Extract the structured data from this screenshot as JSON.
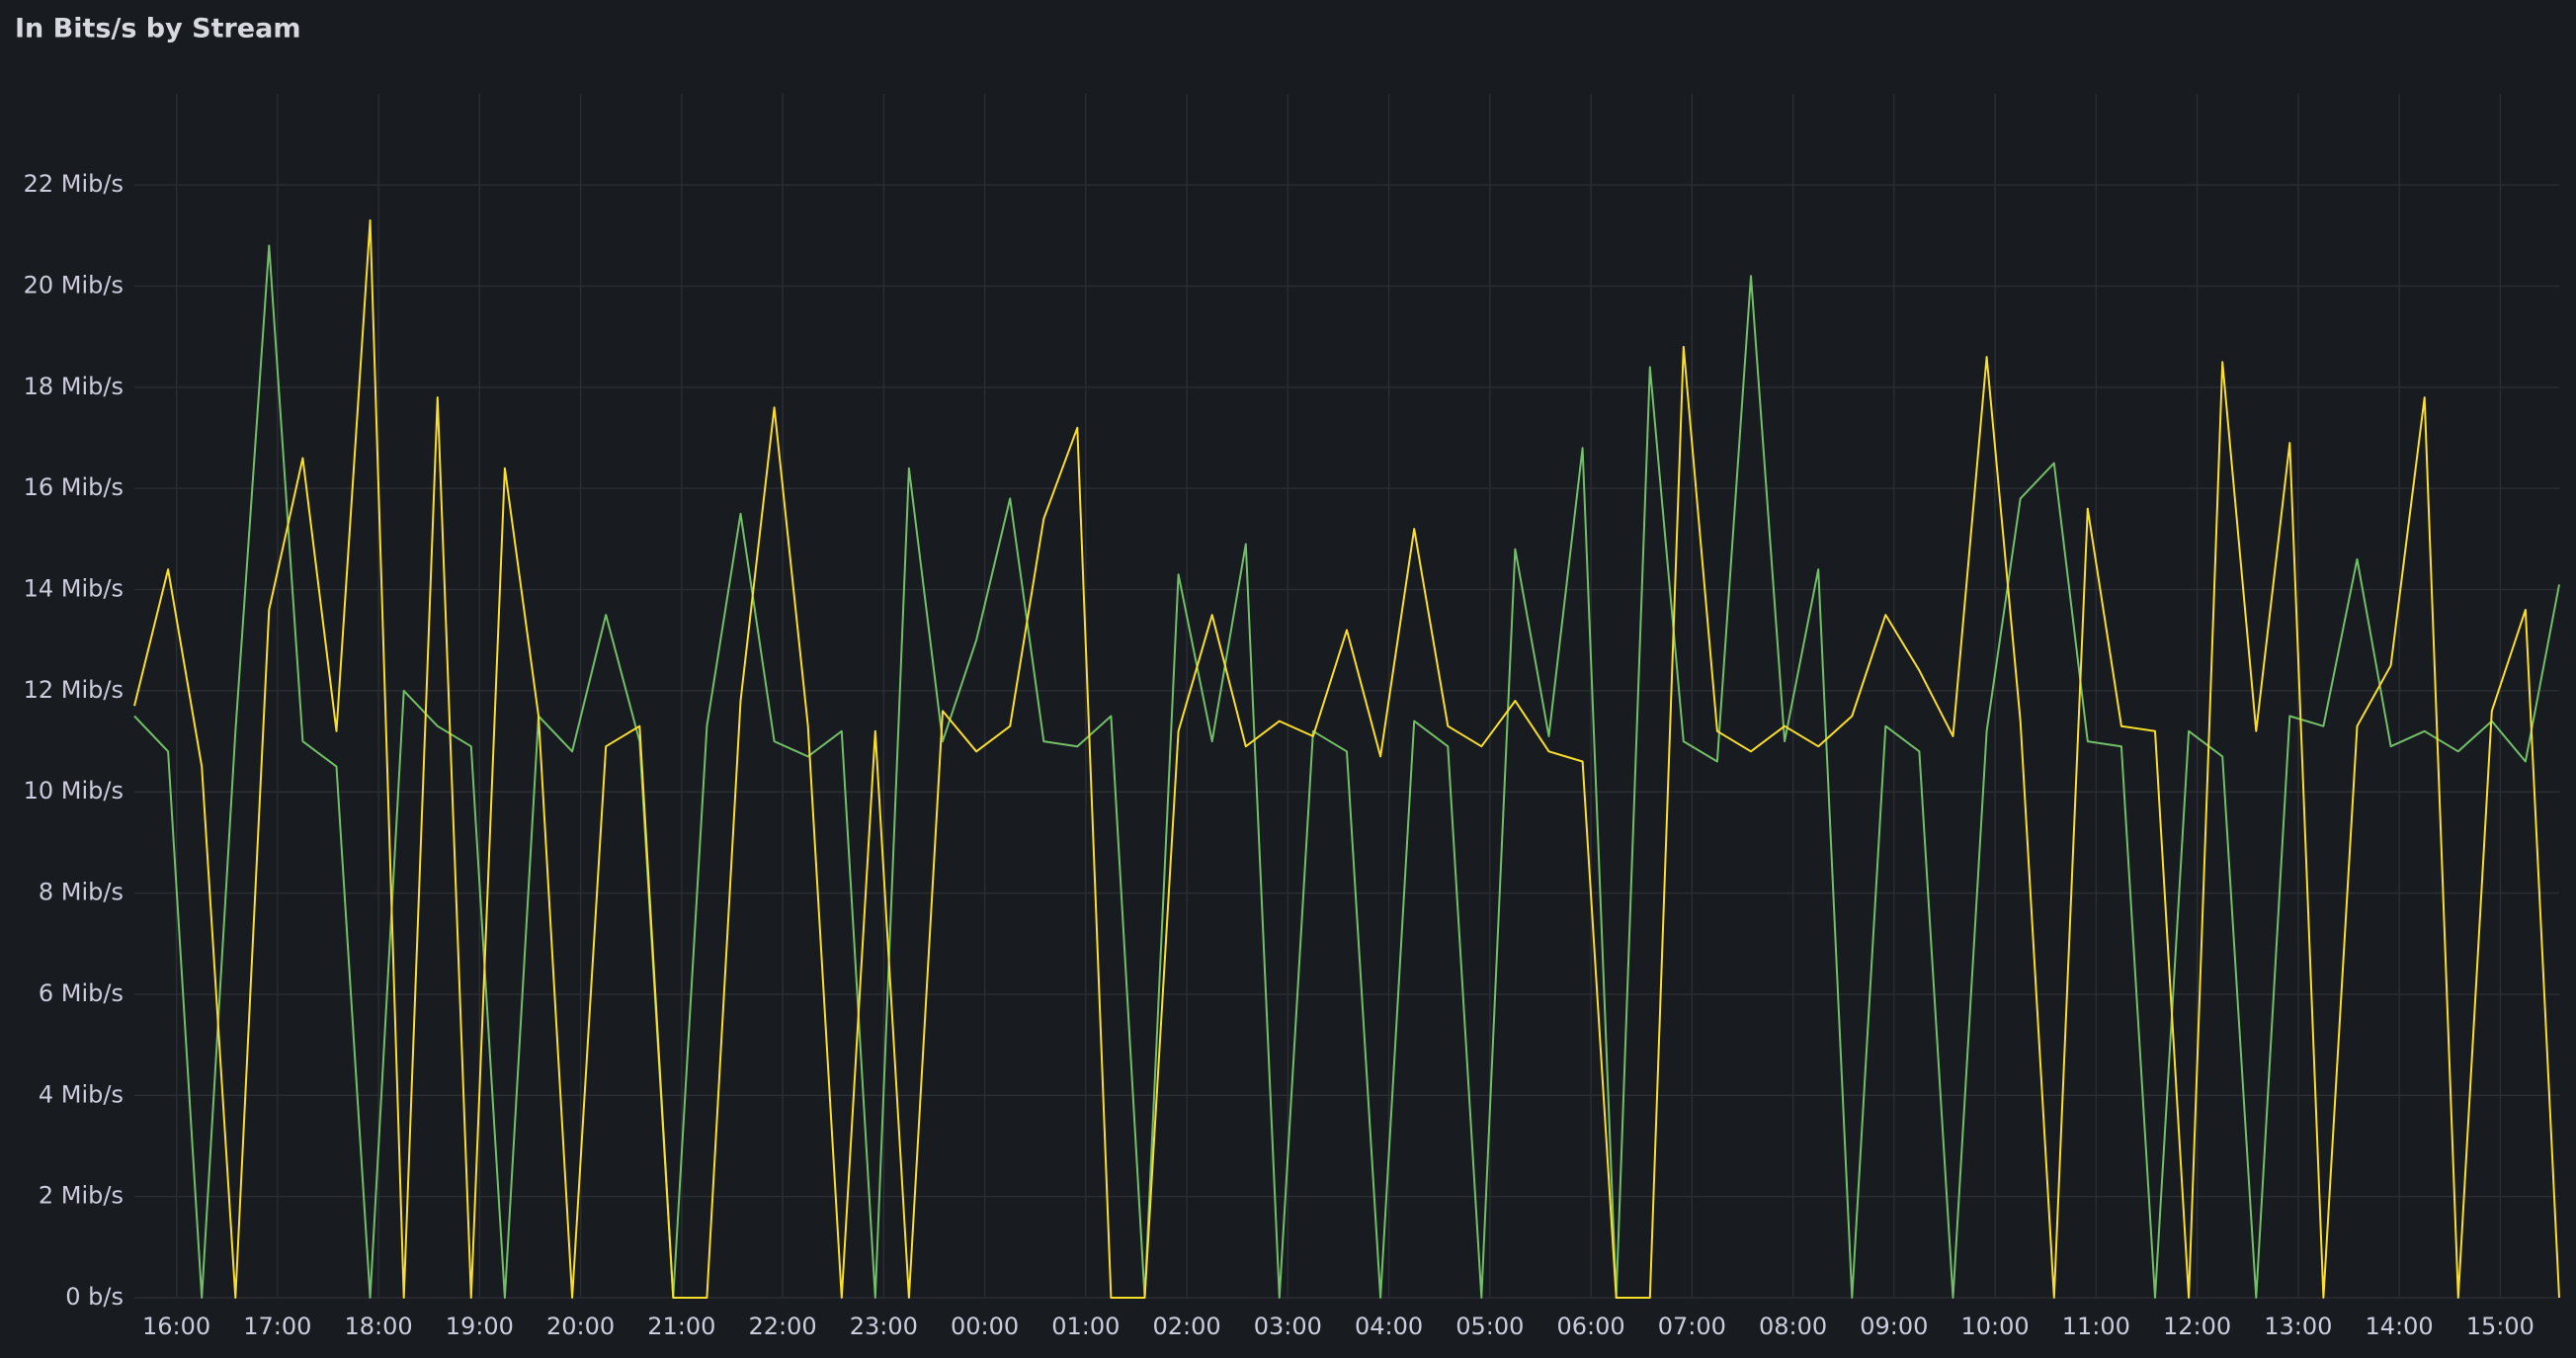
{
  "chart_data": {
    "type": "line",
    "title": "In Bits/s by Stream",
    "x": [
      "15:35",
      "15:55",
      "16:15",
      "16:35",
      "16:55",
      "17:15",
      "17:35",
      "17:55",
      "18:15",
      "18:35",
      "18:55",
      "19:15",
      "19:35",
      "19:55",
      "20:15",
      "20:35",
      "20:55",
      "21:15",
      "21:35",
      "21:55",
      "22:15",
      "22:35",
      "22:55",
      "23:15",
      "23:35",
      "23:55",
      "00:15",
      "00:35",
      "00:55",
      "01:15",
      "01:35",
      "01:55",
      "02:15",
      "02:35",
      "02:55",
      "03:15",
      "03:35",
      "03:55",
      "04:15",
      "04:35",
      "04:55",
      "05:15",
      "05:35",
      "05:55",
      "06:15",
      "06:35",
      "06:55",
      "07:15",
      "07:35",
      "07:55",
      "08:15",
      "08:35",
      "08:55",
      "09:15",
      "09:35",
      "09:55",
      "10:15",
      "10:35",
      "10:55",
      "11:15",
      "11:35",
      "11:55",
      "12:15",
      "12:35",
      "12:55",
      "13:15",
      "13:35",
      "13:55",
      "14:15",
      "14:35",
      "14:55",
      "15:15",
      "15:35"
    ],
    "series": [
      {
        "color": "#73bf69",
        "values": [
          11.5,
          10.8,
          0,
          11.2,
          20.8,
          11,
          10.5,
          0,
          12,
          11.3,
          10.9,
          0,
          11.5,
          10.8,
          13.5,
          11,
          0,
          11.3,
          15.5,
          11,
          10.7,
          11.2,
          0,
          16.4,
          11,
          13,
          15.8,
          11,
          10.9,
          11.5,
          0,
          14.3,
          11,
          14.9,
          0,
          11.2,
          10.8,
          0,
          11.4,
          10.9,
          0,
          14.8,
          11.1,
          16.8,
          0,
          18.4,
          11,
          10.6,
          20.2,
          11,
          14.4,
          0,
          11.3,
          10.8,
          0,
          11.2,
          15.8,
          16.5,
          11,
          10.9,
          0,
          11.2,
          10.7,
          0,
          11.5,
          11.3,
          14.6,
          10.9,
          11.2,
          10.8,
          11.4,
          10.6,
          14.1
        ]
      },
      {
        "color": "#fade2a",
        "values": [
          11.7,
          14.4,
          10.5,
          0,
          13.6,
          16.6,
          11.2,
          21.3,
          0,
          17.8,
          0,
          16.4,
          11.5,
          0,
          10.9,
          11.3,
          0,
          0,
          11.8,
          17.6,
          11.3,
          0,
          11.2,
          0,
          11.6,
          10.8,
          11.3,
          15.4,
          17.2,
          0,
          0,
          11.2,
          13.5,
          10.9,
          11.4,
          11.1,
          13.2,
          10.7,
          15.2,
          11.3,
          10.9,
          11.8,
          10.8,
          10.6,
          0,
          0,
          18.8,
          11.2,
          10.8,
          11.3,
          10.9,
          11.5,
          13.5,
          12.4,
          11.1,
          18.6,
          11.4,
          0,
          15.6,
          11.3,
          11.2,
          0,
          18.5,
          11.2,
          16.9,
          0,
          11.3,
          12.5,
          17.8,
          0,
          11.6,
          13.6,
          0
        ]
      }
    ],
    "xlim": [
      "15:35",
      "15:35"
    ],
    "xticks": [
      "16:00",
      "17:00",
      "18:00",
      "19:00",
      "20:00",
      "21:00",
      "22:00",
      "23:00",
      "00:00",
      "01:00",
      "02:00",
      "03:00",
      "04:00",
      "05:00",
      "06:00",
      "07:00",
      "08:00",
      "09:00",
      "10:00",
      "11:00",
      "12:00",
      "13:00",
      "14:00",
      "15:00"
    ],
    "ylim": [
      0,
      23.8
    ],
    "yticks": [
      {
        "value": 0,
        "label": "0 b/s"
      },
      {
        "value": 2,
        "label": "2 Mib/s"
      },
      {
        "value": 4,
        "label": "4 Mib/s"
      },
      {
        "value": 6,
        "label": "6 Mib/s"
      },
      {
        "value": 8,
        "label": "8 Mib/s"
      },
      {
        "value": 10,
        "label": "10 Mib/s"
      },
      {
        "value": 12,
        "label": "12 Mib/s"
      },
      {
        "value": 14,
        "label": "14 Mib/s"
      },
      {
        "value": 16,
        "label": "16 Mib/s"
      },
      {
        "value": 18,
        "label": "18 Mib/s"
      },
      {
        "value": 20,
        "label": "20 Mib/s"
      },
      {
        "value": 22,
        "label": "22 Mib/s"
      }
    ],
    "grid": true
  }
}
